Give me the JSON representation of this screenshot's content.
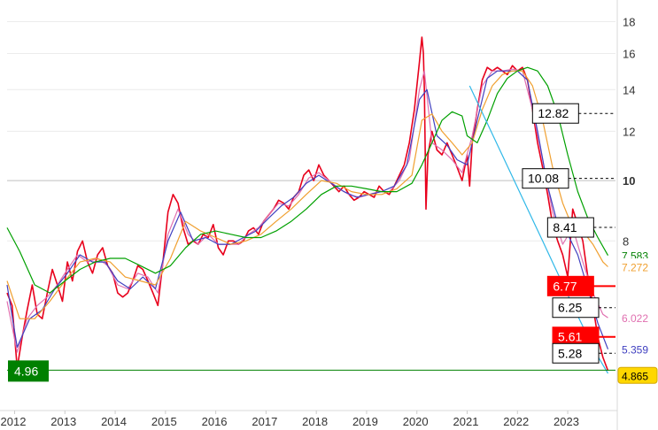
{
  "chart_data": {
    "type": "line",
    "title": "",
    "xlabel": "",
    "ylabel": "",
    "y_scale": "log",
    "ylim": [
      4.3,
      19
    ],
    "xlim": [
      2011.85,
      2023.95
    ],
    "grid": "horizontal",
    "y_ticks": [
      {
        "value": 8,
        "label": "8",
        "bold": false
      },
      {
        "value": 10,
        "label": "10",
        "bold": true
      },
      {
        "value": 12,
        "label": "12",
        "bold": false
      },
      {
        "value": 14,
        "label": "14",
        "bold": false
      },
      {
        "value": 16,
        "label": "16",
        "bold": false
      },
      {
        "value": 18,
        "label": "18",
        "bold": false
      }
    ],
    "x_ticks": [
      {
        "value": 2012,
        "label": "2012"
      },
      {
        "value": 2013,
        "label": "2013"
      },
      {
        "value": 2014,
        "label": "2014"
      },
      {
        "value": 2015,
        "label": "2015"
      },
      {
        "value": 2016,
        "label": "2016"
      },
      {
        "value": 2017,
        "label": "2017"
      },
      {
        "value": 2018,
        "label": "2018"
      },
      {
        "value": 2019,
        "label": "2019"
      },
      {
        "value": 2020,
        "label": "2020"
      },
      {
        "value": 2021,
        "label": "2021"
      },
      {
        "value": 2022,
        "label": "2022"
      },
      {
        "value": 2023,
        "label": "2023"
      }
    ],
    "series": [
      {
        "color": "#e8001c",
        "x": [
          2011.85,
          2011.95,
          2012.05,
          2012.15,
          2012.25,
          2012.35,
          2012.45,
          2012.55,
          2012.65,
          2012.75,
          2012.85,
          2012.95,
          2013.05,
          2013.15,
          2013.25,
          2013.35,
          2013.45,
          2013.55,
          2013.65,
          2013.75,
          2013.85,
          2013.95,
          2014.05,
          2014.15,
          2014.25,
          2014.35,
          2014.45,
          2014.55,
          2014.65,
          2014.75,
          2014.85,
          2014.95,
          2015.05,
          2015.15,
          2015.25,
          2015.35,
          2015.45,
          2015.55,
          2015.65,
          2015.75,
          2015.85,
          2015.95,
          2016.05,
          2016.15,
          2016.25,
          2016.35,
          2016.45,
          2016.55,
          2016.65,
          2016.75,
          2016.85,
          2016.95,
          2017.05,
          2017.15,
          2017.25,
          2017.35,
          2017.45,
          2017.55,
          2017.65,
          2017.75,
          2017.85,
          2017.95,
          2018.05,
          2018.15,
          2018.25,
          2018.35,
          2018.45,
          2018.55,
          2018.65,
          2018.75,
          2018.85,
          2018.95,
          2019.05,
          2019.15,
          2019.25,
          2019.35,
          2019.45,
          2019.55,
          2019.65,
          2019.75,
          2019.85,
          2019.95,
          2020.05,
          2020.1,
          2020.13,
          2020.15,
          2020.18,
          2020.22,
          2020.3,
          2020.4,
          2020.5,
          2020.6,
          2020.7,
          2020.8,
          2020.9,
          2021.0,
          2021.05,
          2021.1,
          2021.2,
          2021.3,
          2021.4,
          2021.5,
          2021.6,
          2021.7,
          2021.8,
          2021.9,
          2022.0,
          2022.1,
          2022.2,
          2022.3,
          2022.4,
          2022.5,
          2022.6,
          2022.7,
          2022.8,
          2022.9,
          2023.0,
          2023.1,
          2023.2,
          2023.3,
          2023.4,
          2023.5,
          2023.6,
          2023.7,
          2023.8
        ],
        "values": [
          6.6,
          6.3,
          5.0,
          5.6,
          6.2,
          6.8,
          6.1,
          6.0,
          6.6,
          7.2,
          6.8,
          6.4,
          7.4,
          6.9,
          7.7,
          8.0,
          7.4,
          7.1,
          7.6,
          7.8,
          7.3,
          7.1,
          6.6,
          6.5,
          6.6,
          6.9,
          7.3,
          7.2,
          6.9,
          6.6,
          6.3,
          7.4,
          8.9,
          9.5,
          9.2,
          8.4,
          7.9,
          8.0,
          7.9,
          8.2,
          8.1,
          8.5,
          7.8,
          7.6,
          8.0,
          8.0,
          7.9,
          8.0,
          8.3,
          8.4,
          8.2,
          8.6,
          8.8,
          9.0,
          9.3,
          9.2,
          9.0,
          9.4,
          9.6,
          10.2,
          10.4,
          10.0,
          10.6,
          10.2,
          10.0,
          9.8,
          9.6,
          9.8,
          9.5,
          9.3,
          9.4,
          9.6,
          9.5,
          9.4,
          9.8,
          9.6,
          9.5,
          9.8,
          10.2,
          10.6,
          11.5,
          13.0,
          15.5,
          17.0,
          16.0,
          14.0,
          9.0,
          11.0,
          12.0,
          11.2,
          11.0,
          11.5,
          11.0,
          10.5,
          10.0,
          11.0,
          9.8,
          11.5,
          13.0,
          14.5,
          15.2,
          15.0,
          15.2,
          15.0,
          14.8,
          15.3,
          15.0,
          15.2,
          14.5,
          13.0,
          11.5,
          10.5,
          9.5,
          8.5,
          8.0,
          7.6,
          7.0,
          9.0,
          8.5,
          8.0,
          7.0,
          6.3,
          5.6,
          5.2,
          4.95
        ]
      },
      {
        "color": "#e070b0",
        "x": [
          2011.85,
          2012.05,
          2012.25,
          2012.45,
          2012.65,
          2012.85,
          2013.05,
          2013.25,
          2013.45,
          2013.65,
          2013.85,
          2014.05,
          2014.25,
          2014.45,
          2014.65,
          2014.85,
          2015.05,
          2015.25,
          2015.45,
          2015.65,
          2015.85,
          2016.05,
          2016.25,
          2016.45,
          2016.65,
          2016.85,
          2017.05,
          2017.25,
          2017.45,
          2017.65,
          2017.85,
          2018.05,
          2018.25,
          2018.45,
          2018.65,
          2018.85,
          2019.05,
          2019.25,
          2019.45,
          2019.65,
          2019.85,
          2020.05,
          2020.15,
          2020.3,
          2020.5,
          2020.7,
          2020.9,
          2021.1,
          2021.3,
          2021.5,
          2021.7,
          2021.9,
          2022.1,
          2022.3,
          2022.5,
          2022.7,
          2022.9,
          2023.1,
          2023.3,
          2023.5,
          2023.7,
          2023.8
        ],
        "values": [
          6.4,
          5.3,
          6.0,
          6.3,
          6.5,
          6.8,
          7.2,
          7.6,
          7.4,
          7.5,
          7.3,
          6.8,
          6.7,
          7.1,
          7.0,
          6.6,
          8.2,
          9.0,
          8.2,
          7.9,
          8.2,
          7.9,
          7.9,
          7.9,
          8.2,
          8.4,
          8.8,
          9.2,
          9.1,
          9.5,
          10.1,
          10.3,
          10.0,
          9.7,
          9.5,
          9.4,
          9.5,
          9.6,
          9.6,
          10.0,
          10.8,
          14.0,
          15.0,
          11.5,
          11.2,
          10.8,
          10.3,
          11.8,
          14.2,
          15.0,
          15.0,
          15.1,
          15.0,
          13.0,
          10.8,
          8.9,
          7.9,
          8.4,
          7.4,
          6.6,
          6.1,
          6.022
        ]
      },
      {
        "color": "#4040c0",
        "x": [
          2011.85,
          2012.05,
          2012.3,
          2012.55,
          2012.8,
          2013.05,
          2013.3,
          2013.55,
          2013.8,
          2014.05,
          2014.3,
          2014.55,
          2014.8,
          2015.05,
          2015.3,
          2015.55,
          2015.8,
          2016.05,
          2016.3,
          2016.55,
          2016.8,
          2017.05,
          2017.3,
          2017.55,
          2017.8,
          2018.05,
          2018.3,
          2018.55,
          2018.8,
          2019.05,
          2019.3,
          2019.55,
          2019.8,
          2020.05,
          2020.2,
          2020.4,
          2020.6,
          2020.8,
          2021.0,
          2021.2,
          2021.4,
          2021.6,
          2021.8,
          2022.0,
          2022.2,
          2022.4,
          2022.6,
          2022.8,
          2023.0,
          2023.2,
          2023.4,
          2023.6,
          2023.8
        ],
        "values": [
          6.8,
          5.4,
          6.0,
          6.2,
          6.7,
          7.1,
          7.6,
          7.4,
          7.4,
          6.9,
          6.7,
          7.0,
          6.7,
          8.0,
          8.9,
          8.0,
          8.1,
          7.9,
          7.9,
          8.1,
          8.3,
          8.7,
          9.1,
          9.4,
          9.9,
          10.2,
          9.9,
          9.6,
          9.4,
          9.5,
          9.6,
          9.8,
          10.6,
          13.5,
          14.0,
          11.8,
          11.4,
          10.8,
          10.6,
          12.5,
          14.6,
          15.0,
          15.0,
          15.0,
          14.5,
          12.0,
          9.8,
          8.5,
          8.2,
          7.6,
          6.7,
          5.9,
          5.359
        ]
      },
      {
        "color": "#f0a030",
        "x": [
          2011.85,
          2012.1,
          2012.4,
          2012.7,
          2013.0,
          2013.3,
          2013.6,
          2013.9,
          2014.2,
          2014.5,
          2014.8,
          2015.1,
          2015.4,
          2015.7,
          2016.0,
          2016.3,
          2016.6,
          2016.9,
          2017.2,
          2017.5,
          2017.8,
          2018.1,
          2018.4,
          2018.7,
          2019.0,
          2019.3,
          2019.6,
          2019.9,
          2020.1,
          2020.3,
          2020.5,
          2020.7,
          2020.9,
          2021.1,
          2021.3,
          2021.5,
          2021.7,
          2021.9,
          2022.1,
          2022.3,
          2022.5,
          2022.7,
          2022.9,
          2023.1,
          2023.3,
          2023.5,
          2023.7,
          2023.8
        ],
        "values": [
          6.9,
          6.0,
          6.0,
          6.4,
          6.9,
          7.4,
          7.5,
          7.4,
          7.0,
          6.9,
          6.8,
          7.5,
          8.6,
          8.3,
          8.1,
          7.9,
          8.0,
          8.2,
          8.6,
          9.0,
          9.5,
          10.0,
          9.9,
          9.6,
          9.5,
          9.5,
          9.7,
          10.2,
          12.5,
          12.8,
          12.0,
          11.5,
          11.0,
          11.5,
          13.0,
          14.2,
          14.8,
          15.0,
          15.0,
          14.2,
          12.5,
          10.5,
          9.2,
          8.4,
          8.3,
          7.9,
          7.4,
          7.272
        ]
      },
      {
        "color": "#00a000",
        "x": [
          2011.85,
          2012.1,
          2012.4,
          2012.7,
          2013.0,
          2013.3,
          2013.6,
          2013.9,
          2014.2,
          2014.5,
          2014.8,
          2015.1,
          2015.4,
          2015.7,
          2016.0,
          2016.3,
          2016.6,
          2016.9,
          2017.2,
          2017.5,
          2017.8,
          2018.1,
          2018.4,
          2018.7,
          2019.0,
          2019.3,
          2019.6,
          2019.9,
          2020.1,
          2020.3,
          2020.5,
          2020.7,
          2020.9,
          2021.0,
          2021.2,
          2021.4,
          2021.6,
          2021.8,
          2022.0,
          2022.2,
          2022.4,
          2022.6,
          2022.8,
          2023.0,
          2023.2,
          2023.4,
          2023.6,
          2023.8
        ],
        "values": [
          8.4,
          7.7,
          6.8,
          6.6,
          6.9,
          7.2,
          7.4,
          7.5,
          7.5,
          7.3,
          7.1,
          7.3,
          7.8,
          8.2,
          8.3,
          8.2,
          8.1,
          8.1,
          8.3,
          8.6,
          9.0,
          9.5,
          9.8,
          9.8,
          9.7,
          9.6,
          9.6,
          9.9,
          10.6,
          11.5,
          12.5,
          12.9,
          12.7,
          11.8,
          11.5,
          12.5,
          13.8,
          14.6,
          15.0,
          15.2,
          15.0,
          14.2,
          12.8,
          11.0,
          9.6,
          8.7,
          8.1,
          7.583
        ]
      },
      {
        "color": "#30b8e8",
        "x": [
          2021.05,
          2022.5,
          2023.1,
          2023.55,
          2023.8
        ],
        "values": [
          14.2,
          8.0,
          6.3,
          5.3,
          4.9
        ]
      }
    ],
    "horizontal_lines": [
      {
        "value": 4.96,
        "color": "#008000",
        "label": "4.96"
      }
    ],
    "annotations": [
      {
        "label": "12.82",
        "value": 12.82,
        "x": 2022.3,
        "style": "white"
      },
      {
        "label": "10.08",
        "value": 10.08,
        "x": 2022.1,
        "style": "white"
      },
      {
        "label": "8.41",
        "value": 8.41,
        "x": 2022.6,
        "style": "white"
      },
      {
        "label": "6.77",
        "value": 6.77,
        "x": 2022.6,
        "style": "red"
      },
      {
        "label": "6.25",
        "value": 6.25,
        "x": 2022.7,
        "style": "white"
      },
      {
        "label": "5.61",
        "value": 5.61,
        "x": 2022.7,
        "style": "red"
      },
      {
        "label": "5.28",
        "value": 5.28,
        "x": 2022.7,
        "style": "white"
      }
    ],
    "value_tags": [
      {
        "label": "7.583",
        "value": 7.583,
        "color": "#008000",
        "bg": "#ffffff"
      },
      {
        "label": "7.272",
        "value": 7.272,
        "color": "#f0a030",
        "bg": "#ffffff"
      },
      {
        "label": "6.022",
        "value": 6.022,
        "color": "#e070b0",
        "bg": "#ffffff"
      },
      {
        "label": "5.359",
        "value": 5.359,
        "color": "#4040c0",
        "bg": "#ffffff"
      },
      {
        "label": "4.865",
        "value": 4.865,
        "color": "#000000",
        "bg": "#ffd700"
      }
    ]
  }
}
